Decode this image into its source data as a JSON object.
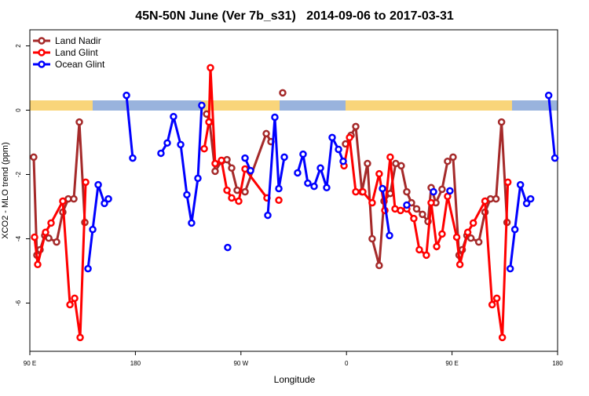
{
  "chart_data": {
    "type": "line",
    "title": "45N-50N June (Ver 7b_s31)   2014-09-06 to 2017-03-31",
    "x_label": "Longitude",
    "y_label": "XCO2 - MLO trend (ppm)",
    "xlim": [
      90,
      540
    ],
    "ylim": [
      -7.5,
      2.5
    ],
    "xticks": [
      {
        "value": 90,
        "label": "90 E"
      },
      {
        "value": 180,
        "label": "180"
      },
      {
        "value": 270,
        "label": "90 W"
      },
      {
        "value": 360,
        "label": "0"
      },
      {
        "value": 450,
        "label": "90 E"
      },
      {
        "value": 540,
        "label": "180"
      }
    ],
    "yticks": [
      -6,
      -4,
      -2,
      0,
      2
    ],
    "legend": "top-left",
    "series": [
      {
        "name": "Land Nadir",
        "color": "#a52a2a",
        "x": [
          93.3,
          96.0,
          98.7,
          102.7,
          106.1,
          112.8,
          118.1,
          122.8,
          127.5,
          132.2,
          136.9,
          null,
          240.7,
          243.3,
          248.0,
          253.4,
          258.1,
          262.1,
          266.8,
          273.5,
          291.6,
          295.6,
          null,
          305.6,
          null,
          359.2,
          363.9,
          367.9,
          373.2,
          377.9,
          381.9,
          387.9,
          392.0,
          397.3,
          402.0,
          406.7,
          411.4,
          415.4,
          419.8,
          424.8,
          429.5,
          432.2,
          436.2,
          441.5,
          446.2,
          450.9,
          456.0,
          458.7,
          462.7,
          466.1,
          472.8,
          478.1,
          482.8,
          487.5,
          492.2,
          496.9
        ],
        "values": [
          -1.46,
          -4.51,
          -4.34,
          -3.9,
          -3.98,
          -4.1,
          -3.17,
          -2.76,
          -2.76,
          -0.37,
          -3.49,
          null,
          -0.12,
          -0.37,
          -1.9,
          -1.59,
          -1.54,
          -1.8,
          -2.49,
          -2.54,
          -0.73,
          -0.98,
          null,
          0.54,
          null,
          -1.05,
          -0.78,
          -0.51,
          -2.54,
          -1.66,
          -4.0,
          -4.83,
          -2.83,
          -2.59,
          -1.66,
          -1.73,
          -2.54,
          -2.88,
          -3.07,
          -3.24,
          -3.46,
          -2.41,
          -2.88,
          -2.46,
          -1.59,
          -1.46,
          -4.51,
          -4.34,
          -3.9,
          -3.98,
          -4.1,
          -3.17,
          -2.76,
          -2.76,
          -0.37,
          -3.49
        ]
      },
      {
        "name": "Land Glint",
        "color": "#ff0000",
        "x": [
          94.0,
          96.7,
          103.4,
          108.1,
          118.1,
          124.2,
          128.2,
          132.9,
          137.6,
          null,
          238.7,
          242.7,
          244.0,
          248.0,
          253.4,
          258.1,
          262.1,
          268.1,
          273.5,
          292.2,
          null,
          302.3,
          null,
          357.9,
          362.6,
          367.9,
          373.9,
          381.9,
          387.9,
          392.7,
          397.3,
          401.4,
          406.1,
          411.4,
          417.4,
          422.1,
          428.1,
          432.2,
          436.9,
          441.5,
          446.2,
          454.0,
          456.7,
          463.4,
          468.1,
          478.1,
          484.2,
          488.2,
          492.9,
          497.6
        ],
        "values": [
          -3.95,
          -4.8,
          -3.8,
          -3.51,
          -2.83,
          -6.05,
          -5.85,
          -7.07,
          -2.24,
          null,
          -1.2,
          -0.37,
          1.32,
          -1.66,
          -1.56,
          -2.49,
          -2.73,
          -2.83,
          -1.83,
          -2.73,
          null,
          -2.8,
          null,
          -1.73,
          -0.85,
          -2.54,
          -2.54,
          -2.88,
          -1.98,
          -3.12,
          -1.46,
          -3.07,
          -3.12,
          -3.07,
          -3.37,
          -4.34,
          -4.51,
          -2.88,
          -4.24,
          -3.85,
          -2.68,
          -3.95,
          -4.8,
          -3.8,
          -3.51,
          -2.83,
          -6.05,
          -5.85,
          -7.07,
          -2.24
        ]
      },
      {
        "name": "Ocean Glint",
        "color": "#0000ff",
        "x": [
          139.6,
          143.6,
          148.3,
          153.6,
          157.0,
          null,
          172.4,
          177.7,
          null,
          201.8,
          207.2,
          212.5,
          218.6,
          223.9,
          227.9,
          233.3,
          236.6,
          null,
          258.7,
          null,
          273.5,
          278.2,
          null,
          292.9,
          298.9,
          302.3,
          307.0,
          null,
          318.3,
          323.0,
          327.0,
          332.4,
          337.8,
          343.1,
          347.8,
          353.2,
          357.2,
          null,
          390.7,
          396.7,
          null,
          411.4,
          null,
          434.2,
          null,
          448.2,
          null,
          499.6,
          503.6,
          508.3,
          513.6,
          517.0,
          null,
          532.4,
          537.7
        ],
        "values": [
          -4.93,
          -3.71,
          -2.32,
          -2.9,
          -2.76,
          null,
          0.46,
          -1.49,
          null,
          -1.34,
          -1.02,
          -0.2,
          -1.07,
          -2.63,
          -3.51,
          -2.12,
          0.15,
          null,
          -4.27,
          null,
          -1.49,
          -1.88,
          null,
          -3.27,
          -0.22,
          -2.44,
          -1.46,
          null,
          -1.95,
          -1.37,
          -2.27,
          -2.37,
          -1.8,
          -2.41,
          -0.85,
          -1.22,
          -1.59,
          null,
          -2.44,
          -3.9,
          null,
          -2.95,
          null,
          -2.54,
          null,
          -2.51,
          null,
          -4.93,
          -3.71,
          -2.32,
          -2.9,
          -2.76,
          null,
          0.46,
          -1.49
        ]
      }
    ]
  }
}
